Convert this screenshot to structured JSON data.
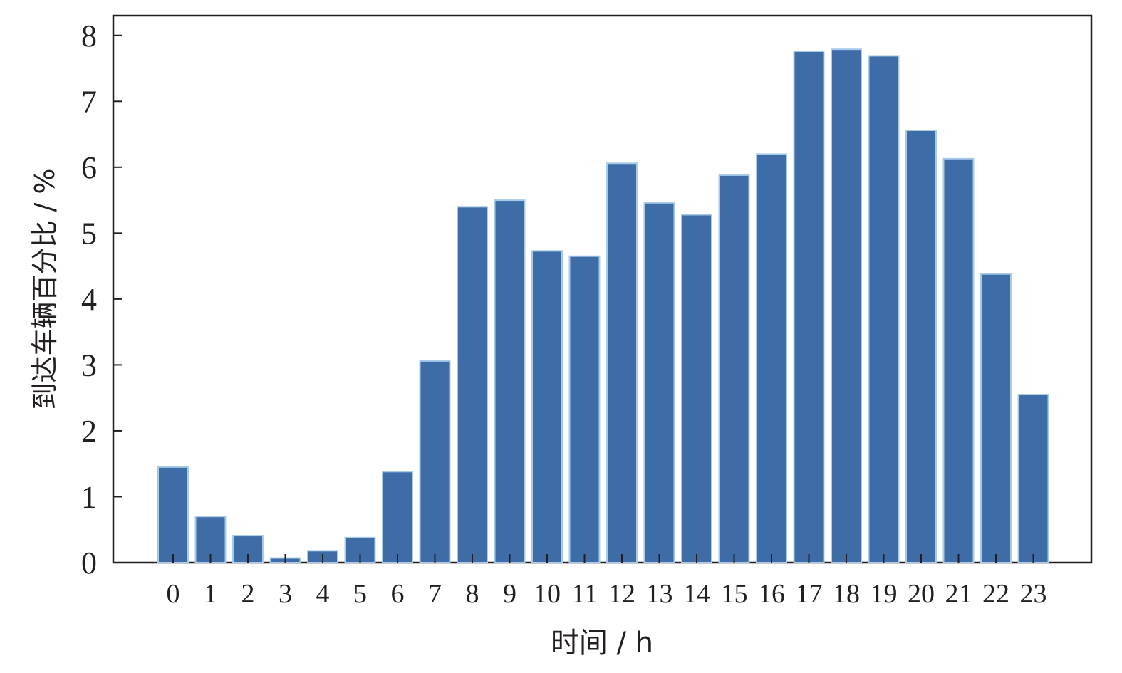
{
  "chart_data": {
    "type": "bar",
    "title": "",
    "xlabel": "时间 / h",
    "ylabel": "到达车辆百分比 / %",
    "categories": [
      "0",
      "1",
      "2",
      "3",
      "4",
      "5",
      "6",
      "7",
      "8",
      "9",
      "10",
      "11",
      "12",
      "13",
      "14",
      "15",
      "16",
      "17",
      "18",
      "19",
      "20",
      "21",
      "22",
      "23"
    ],
    "values": [
      1.45,
      0.7,
      0.41,
      0.07,
      0.18,
      0.38,
      1.38,
      3.06,
      5.4,
      5.5,
      4.73,
      4.65,
      6.06,
      5.46,
      5.28,
      5.88,
      6.2,
      7.76,
      7.79,
      7.69,
      6.56,
      6.13,
      4.38,
      2.55
    ],
    "yticks": [
      "0",
      "1",
      "2",
      "3",
      "4",
      "5",
      "6",
      "7",
      "8"
    ],
    "ylim": [
      0,
      8.3
    ],
    "grid": false,
    "colors": {
      "bar": "#3d6ca7",
      "bar_edge": "#a9cbea",
      "axis": "#231f20"
    }
  }
}
